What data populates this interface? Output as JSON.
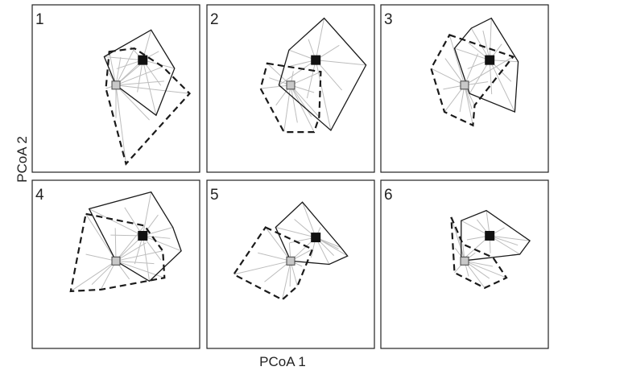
{
  "figure": {
    "xlabel": "PCoA 1",
    "ylabel": "PCoA 2"
  },
  "colors": {
    "frame": "#222222",
    "spoke": "#bdbdbd",
    "hull": "#1a1a1a",
    "group_a_centroid": "#111111",
    "group_b_centroid": "#c8c8c8"
  },
  "chart_data": [
    {
      "type": "scatter",
      "panel": "1",
      "groups": [
        {
          "hull_style": "solid",
          "centroid_marker": "black-square",
          "centroid": [
            0.66,
            0.67
          ],
          "points": [
            [
              0.43,
              0.69
            ],
            [
              0.71,
              0.85
            ],
            [
              0.85,
              0.62
            ],
            [
              0.74,
              0.34
            ],
            [
              0.5,
              0.52
            ]
          ]
        },
        {
          "hull_style": "dashed",
          "centroid_marker": "gray-square",
          "centroid": [
            0.5,
            0.52
          ],
          "points": [
            [
              0.46,
              0.72
            ],
            [
              0.61,
              0.74
            ],
            [
              0.78,
              0.63
            ],
            [
              0.94,
              0.47
            ],
            [
              0.56,
              0.05
            ],
            [
              0.44,
              0.5
            ]
          ]
        }
      ]
    },
    {
      "type": "scatter",
      "panel": "2",
      "groups": [
        {
          "hull_style": "solid",
          "centroid_marker": "black-square",
          "centroid": [
            0.65,
            0.67
          ],
          "points": [
            [
              0.49,
              0.73
            ],
            [
              0.7,
              0.92
            ],
            [
              0.95,
              0.64
            ],
            [
              0.74,
              0.25
            ],
            [
              0.43,
              0.52
            ]
          ]
        },
        {
          "hull_style": "dashed",
          "centroid_marker": "gray-square",
          "centroid": [
            0.5,
            0.52
          ],
          "points": [
            [
              0.36,
              0.65
            ],
            [
              0.68,
              0.6
            ],
            [
              0.67,
              0.33
            ],
            [
              0.64,
              0.24
            ],
            [
              0.46,
              0.24
            ],
            [
              0.32,
              0.5
            ]
          ]
        }
      ]
    },
    {
      "type": "scatter",
      "panel": "3",
      "groups": [
        {
          "hull_style": "solid",
          "centroid_marker": "black-square",
          "centroid": [
            0.65,
            0.67
          ],
          "points": [
            [
              0.44,
              0.74
            ],
            [
              0.54,
              0.86
            ],
            [
              0.66,
              0.92
            ],
            [
              0.82,
              0.66
            ],
            [
              0.8,
              0.36
            ],
            [
              0.53,
              0.47
            ]
          ]
        },
        {
          "hull_style": "dashed",
          "centroid_marker": "gray-square",
          "centroid": [
            0.5,
            0.52
          ],
          "points": [
            [
              0.41,
              0.82
            ],
            [
              0.79,
              0.69
            ],
            [
              0.56,
              0.4
            ],
            [
              0.55,
              0.28
            ],
            [
              0.38,
              0.36
            ],
            [
              0.3,
              0.62
            ]
          ]
        }
      ]
    },
    {
      "type": "scatter",
      "panel": "4",
      "groups": [
        {
          "hull_style": "solid",
          "centroid_marker": "black-square",
          "centroid": [
            0.66,
            0.67
          ],
          "points": [
            [
              0.34,
              0.83
            ],
            [
              0.71,
              0.93
            ],
            [
              0.84,
              0.72
            ],
            [
              0.89,
              0.58
            ],
            [
              0.7,
              0.4
            ],
            [
              0.5,
              0.52
            ]
          ]
        },
        {
          "hull_style": "dashed",
          "centroid_marker": "gray-square",
          "centroid": [
            0.5,
            0.52
          ],
          "points": [
            [
              0.32,
              0.8
            ],
            [
              0.67,
              0.73
            ],
            [
              0.78,
              0.58
            ],
            [
              0.79,
              0.42
            ],
            [
              0.41,
              0.35
            ],
            [
              0.23,
              0.34
            ]
          ]
        }
      ]
    },
    {
      "type": "scatter",
      "panel": "5",
      "groups": [
        {
          "hull_style": "solid",
          "centroid_marker": "black-square",
          "centroid": [
            0.65,
            0.66
          ],
          "points": [
            [
              0.41,
              0.72
            ],
            [
              0.57,
              0.87
            ],
            [
              0.8,
              0.6
            ],
            [
              0.84,
              0.55
            ],
            [
              0.73,
              0.5
            ],
            [
              0.5,
              0.52
            ]
          ]
        },
        {
          "hull_style": "dashed",
          "centroid_marker": "gray-square",
          "centroid": [
            0.5,
            0.52
          ],
          "points": [
            [
              0.35,
              0.72
            ],
            [
              0.63,
              0.59
            ],
            [
              0.54,
              0.37
            ],
            [
              0.45,
              0.29
            ],
            [
              0.16,
              0.44
            ]
          ]
        }
      ]
    },
    {
      "type": "scatter",
      "panel": "6",
      "groups": [
        {
          "hull_style": "solid",
          "centroid_marker": "black-square",
          "centroid": [
            0.65,
            0.67
          ],
          "points": [
            [
              0.48,
              0.76
            ],
            [
              0.63,
              0.82
            ],
            [
              0.89,
              0.64
            ],
            [
              0.83,
              0.56
            ],
            [
              0.48,
              0.52
            ]
          ]
        },
        {
          "hull_style": "dashed",
          "centroid_marker": "gray-square",
          "centroid": [
            0.5,
            0.52
          ],
          "points": [
            [
              0.42,
              0.78
            ],
            [
              0.49,
              0.62
            ],
            [
              0.67,
              0.54
            ],
            [
              0.75,
              0.42
            ],
            [
              0.62,
              0.36
            ],
            [
              0.44,
              0.45
            ]
          ]
        }
      ]
    }
  ]
}
